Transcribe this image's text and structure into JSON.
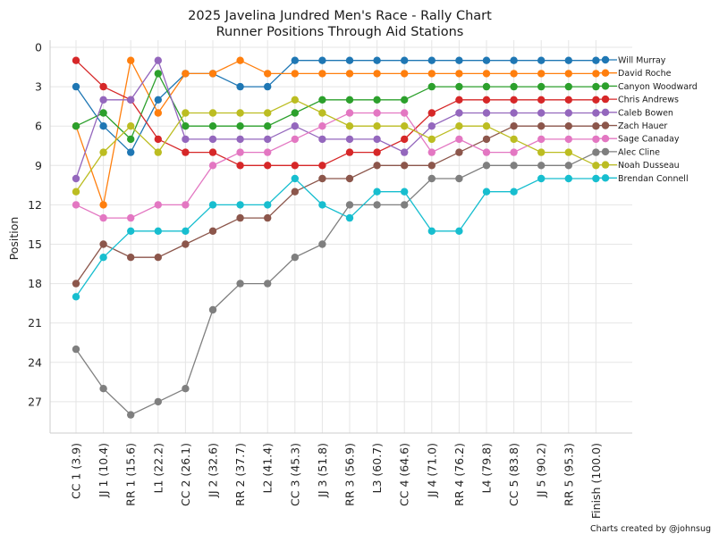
{
  "chart_data": {
    "type": "line",
    "title": "2025 Javelina Jundred Men's Race - Rally Chart",
    "subtitle": "Runner Positions Through Aid Stations",
    "xlabel": "",
    "ylabel": "Position",
    "credit": "Charts created by @johnsug",
    "categories": [
      "CC 1 (3.9)",
      "JJ 1 (10.4)",
      "RR 1 (15.6)",
      "L1 (22.2)",
      "CC 2 (26.1)",
      "JJ 2 (32.6)",
      "RR 2 (37.7)",
      "L2 (41.4)",
      "CC 3 (45.3)",
      "JJ 3 (51.8)",
      "RR 3 (56.9)",
      "L3 (60.7)",
      "CC 4 (64.6)",
      "JJ 4 (71.0)",
      "RR 4 (76.2)",
      "L4 (79.8)",
      "CC 5 (83.8)",
      "JJ 5 (90.2)",
      "RR 5 (95.3)",
      "Finish (100.0)"
    ],
    "y_ticks": [
      0,
      3,
      6,
      9,
      12,
      15,
      18,
      21,
      24,
      27
    ],
    "ylim": [
      0,
      29
    ],
    "y_inverted": true,
    "grid": true,
    "legend_position": "right",
    "series": [
      {
        "name": "Will Murray",
        "color": "#1f77b4",
        "values": [
          3,
          6,
          8,
          4,
          2,
          2,
          3,
          3,
          1,
          1,
          1,
          1,
          1,
          1,
          1,
          1,
          1,
          1,
          1,
          1
        ]
      },
      {
        "name": "David Roche",
        "color": "#ff7f0e",
        "values": [
          6,
          12,
          1,
          5,
          2,
          2,
          1,
          2,
          2,
          2,
          2,
          2,
          2,
          2,
          2,
          2,
          2,
          2,
          2,
          2
        ]
      },
      {
        "name": "Canyon Woodward",
        "color": "#2ca02c",
        "values": [
          6,
          5,
          7,
          2,
          6,
          6,
          6,
          6,
          5,
          4,
          4,
          4,
          4,
          3,
          3,
          3,
          3,
          3,
          3,
          3
        ]
      },
      {
        "name": "Chris Andrews",
        "color": "#d62728",
        "values": [
          1,
          3,
          4,
          7,
          8,
          8,
          9,
          9,
          9,
          9,
          8,
          8,
          7,
          5,
          4,
          4,
          4,
          4,
          4,
          4
        ]
      },
      {
        "name": "Caleb Bowen",
        "color": "#9467bd",
        "values": [
          10,
          4,
          4,
          1,
          7,
          7,
          7,
          7,
          6,
          7,
          7,
          7,
          8,
          6,
          5,
          5,
          5,
          5,
          5,
          5
        ]
      },
      {
        "name": "Zach Hauer",
        "color": "#8c564b",
        "values": [
          18,
          15,
          16,
          16,
          15,
          14,
          13,
          13,
          11,
          10,
          10,
          9,
          9,
          9,
          8,
          7,
          6,
          6,
          6,
          6
        ]
      },
      {
        "name": "Sage Canaday",
        "color": "#e377c2",
        "values": [
          12,
          13,
          13,
          12,
          12,
          9,
          8,
          8,
          7,
          6,
          5,
          5,
          5,
          8,
          7,
          8,
          8,
          7,
          7,
          7
        ]
      },
      {
        "name": "Alec Cline",
        "color": "#7f7f7f",
        "values": [
          23,
          26,
          28,
          27,
          26,
          20,
          18,
          18,
          16,
          15,
          12,
          12,
          12,
          10,
          10,
          9,
          9,
          9,
          9,
          8
        ]
      },
      {
        "name": "Noah Dusseau",
        "color": "#bcbd22",
        "values": [
          11,
          8,
          6,
          8,
          5,
          5,
          5,
          5,
          4,
          5,
          6,
          6,
          6,
          7,
          6,
          6,
          7,
          8,
          8,
          9
        ]
      },
      {
        "name": "Brendan Connell",
        "color": "#17becf",
        "values": [
          19,
          16,
          14,
          14,
          14,
          12,
          12,
          12,
          10,
          12,
          13,
          11,
          11,
          14,
          14,
          11,
          11,
          10,
          10,
          10
        ]
      }
    ]
  }
}
